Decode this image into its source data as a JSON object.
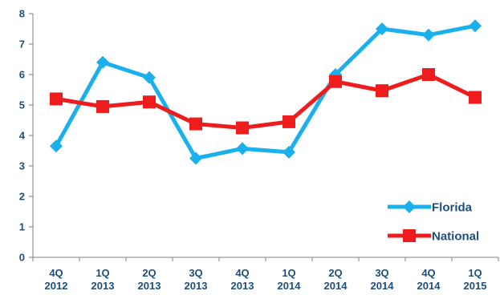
{
  "chart_data": {
    "type": "line",
    "categories": [
      [
        "4Q",
        "2012"
      ],
      [
        "1Q",
        "2013"
      ],
      [
        "2Q",
        "2013"
      ],
      [
        "3Q",
        "2013"
      ],
      [
        "4Q",
        "2013"
      ],
      [
        "1Q",
        "2014"
      ],
      [
        "2Q",
        "2014"
      ],
      [
        "3Q",
        "2014"
      ],
      [
        "4Q",
        "2014"
      ],
      [
        "1Q",
        "2015"
      ]
    ],
    "series": [
      {
        "name": "Florida",
        "color": "#1ab0ec",
        "marker": "diamond",
        "values": [
          3.65,
          6.4,
          5.9,
          3.25,
          3.57,
          3.45,
          6.0,
          7.5,
          7.3,
          7.6
        ]
      },
      {
        "name": "National",
        "color": "#ee1c1c",
        "marker": "square",
        "values": [
          5.2,
          4.95,
          5.1,
          4.38,
          4.25,
          4.45,
          5.77,
          5.47,
          6.0,
          5.25
        ]
      }
    ],
    "yticks": [
      0,
      1,
      2,
      3,
      4,
      5,
      6,
      7,
      8
    ],
    "ylim": [
      0,
      8
    ],
    "grid": false,
    "legend_position": "bottom-right",
    "title": "",
    "xlabel": "",
    "ylabel": ""
  }
}
